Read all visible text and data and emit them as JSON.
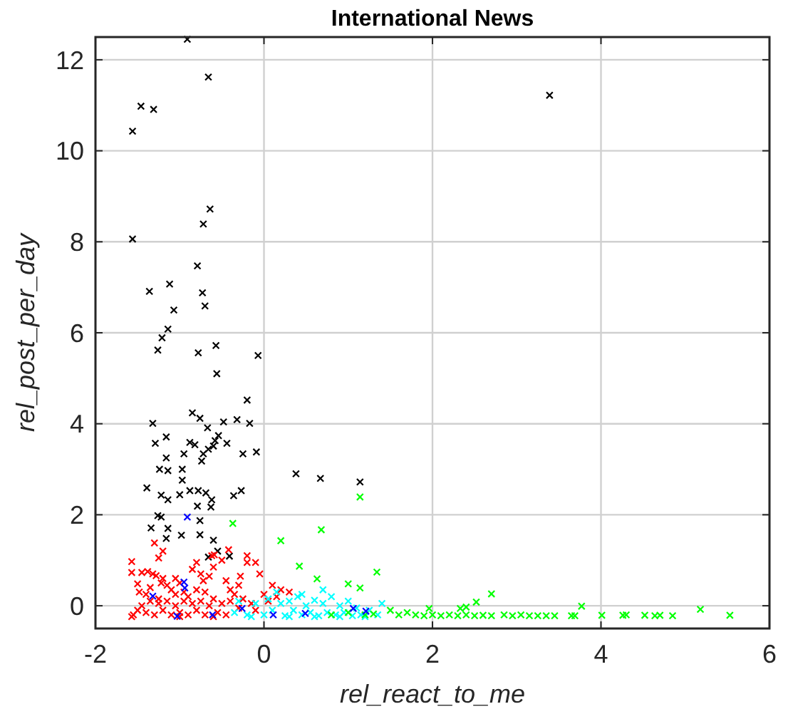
{
  "chart_data": {
    "type": "scatter",
    "title": "International News",
    "xlabel": "rel_react_to_me",
    "ylabel": "rel_post_per_day",
    "xlim": [
      -2,
      6
    ],
    "ylim": [
      -0.5,
      12.5
    ],
    "xticks": [
      -2,
      0,
      2,
      4,
      6
    ],
    "yticks": [
      0,
      2,
      4,
      6,
      8,
      10,
      12
    ],
    "grid": true,
    "marker": "cross",
    "series": [
      {
        "color": "#000000",
        "x": [
          -0.91,
          -0.66,
          -1.46,
          -1.31,
          -1.56,
          3.39,
          -0.64,
          -0.72,
          -1.56,
          -0.79,
          -1.12,
          -1.36,
          -0.73,
          -0.7,
          -1.07,
          -1.14,
          -1.21,
          -1.26,
          -0.78,
          -0.57,
          -0.07,
          -0.56,
          -0.2,
          -0.85,
          -0.76,
          -0.32,
          -1.32,
          -0.48,
          -0.17,
          -0.67,
          -1.16,
          -0.54,
          -0.58,
          -1.29,
          -0.44,
          -0.88,
          -0.82,
          -0.6,
          -0.66,
          -0.72,
          -0.95,
          -0.25,
          -0.09,
          -1.16,
          -0.74,
          -1.24,
          -1.14,
          -0.97,
          -0.97,
          -1.39,
          -0.88,
          -0.78,
          -0.69,
          -0.27,
          -1.22,
          -1,
          -0.36,
          -1.14,
          -0.62,
          -0.79,
          -0.63,
          0.38,
          0.67,
          1.14,
          -1.26,
          -1.22,
          -0.76,
          -1.34,
          -1.14,
          -1.16,
          -0.98,
          -0.76,
          -0.6,
          -0.55,
          -0.66,
          -0.41
        ],
        "values": [
          12.45,
          11.62,
          10.98,
          10.91,
          10.43,
          11.22,
          8.72,
          8.39,
          8.06,
          7.47,
          7.07,
          6.91,
          6.88,
          6.59,
          6.5,
          6.08,
          5.89,
          5.62,
          5.56,
          5.72,
          5.5,
          5.1,
          4.52,
          4.24,
          4.12,
          4.09,
          4.01,
          4.04,
          4.01,
          3.91,
          3.71,
          3.74,
          3.63,
          3.57,
          3.57,
          3.59,
          3.54,
          3.51,
          3.44,
          3.34,
          3.34,
          3.34,
          3.38,
          3.25,
          3.18,
          3,
          2.97,
          3,
          2.76,
          2.59,
          2.53,
          2.53,
          2.48,
          2.53,
          2.43,
          2.44,
          2.42,
          2.33,
          2.33,
          2.19,
          2.17,
          2.9,
          2.8,
          2.72,
          1.98,
          1.95,
          1.87,
          1.71,
          1.7,
          1.48,
          1.55,
          1.56,
          1.44,
          1.2,
          1.07,
          1.09
        ]
      },
      {
        "color": "#ff0000",
        "x": [
          -1.57,
          -1.57,
          -1.45,
          -1.38,
          -1.32,
          -1.28,
          -1.3,
          -1.25,
          -1.2,
          -1.22,
          -1.5,
          -1.48,
          -1.4,
          -1.35,
          -1.2,
          -1.15,
          -1.1,
          -1.05,
          -1,
          -0.95,
          -0.9,
          -0.8,
          -0.7,
          -0.75,
          -0.8,
          -0.72,
          -0.65,
          -0.6,
          -0.59,
          -0.5,
          -0.45,
          -0.4,
          -0.35,
          -0.3,
          -0.28,
          -0.2,
          -0.1,
          -0.05,
          0,
          0.1,
          0.2,
          0.3,
          -0.2,
          -0.42,
          -0.62,
          -0.85,
          -1.05,
          -1.25,
          -1.55,
          -1.5,
          -1.45,
          -1.4,
          -1.35,
          -1.3,
          -1.25,
          -1.2,
          -1.15,
          -1.1,
          -1.05,
          -1,
          -0.95,
          -0.9,
          -0.85,
          -0.8,
          -0.75,
          -0.7,
          -0.65,
          -0.6,
          -0.55,
          -0.5,
          -0.45,
          -0.4,
          -0.3,
          -0.25,
          -0.15,
          -0.1,
          0.05,
          0.15,
          -1.57,
          -1,
          -0.6
        ],
        "values": [
          0.97,
          0.73,
          0.73,
          0.75,
          0.7,
          0.66,
          1.38,
          1.05,
          1.2,
          0.5,
          0.48,
          0.3,
          0.25,
          0.4,
          0.6,
          0.45,
          0.35,
          0.25,
          0.5,
          0.3,
          0.2,
          0.35,
          0.3,
          0.7,
          0.95,
          0.55,
          0.65,
          0.85,
          1.12,
          1,
          0.55,
          0.35,
          0.25,
          0.45,
          0.65,
          0.95,
          0.95,
          0.7,
          0.25,
          0.45,
          0.35,
          0.3,
          1.1,
          1.23,
          1.1,
          0.8,
          0.6,
          0.15,
          -0.2,
          -0.1,
          0,
          -0.15,
          0.1,
          -0.2,
          0.05,
          -0.1,
          0.1,
          -0.2,
          0,
          -0.15,
          0.1,
          -0.2,
          0.05,
          -0.1,
          0.1,
          -0.2,
          0,
          0.15,
          -0.15,
          0.05,
          -0.2,
          0.1,
          -0.05,
          0.15,
          0.05,
          -0.1,
          0.1,
          0.2,
          -0.24,
          -0.24,
          -0.24
        ]
      },
      {
        "color": "#00ffff",
        "x": [
          -0.35,
          -0.3,
          -0.2,
          -0.1,
          0,
          0.05,
          0.1,
          0.2,
          0.25,
          0.3,
          0.35,
          0.4,
          0.45,
          0.5,
          0.55,
          0.6,
          0.65,
          0.7,
          0.75,
          0.8,
          0.85,
          0.9,
          0.95,
          1,
          1.05,
          1.1,
          1.15,
          1.25,
          1.35,
          1.4,
          0.15,
          0.45,
          0.7,
          -0.15,
          0.3,
          0.6,
          0.9,
          1.2
        ],
        "values": [
          -0.15,
          0.1,
          -0.2,
          0.05,
          -0.2,
          0.15,
          -0.1,
          0.05,
          -0.22,
          0.1,
          -0.1,
          0.2,
          -0.2,
          0,
          -0.15,
          0.12,
          -0.22,
          0.05,
          -0.15,
          0.2,
          -0.2,
          0,
          -0.15,
          0.1,
          -0.22,
          -0.05,
          -0.2,
          -0.1,
          -0.2,
          0.05,
          0.3,
          0.25,
          0.35,
          -0.24,
          -0.24,
          -0.24,
          -0.24,
          -0.24
        ]
      },
      {
        "color": "#00ff00",
        "x": [
          1.14,
          -0.37,
          0.68,
          0.2,
          0.42,
          1.34,
          0.63,
          1,
          1.14,
          2.7,
          2.52,
          3.77,
          5.18,
          0.8,
          1,
          1.2,
          1.3,
          1.5,
          1.6,
          1.7,
          1.8,
          1.9,
          2,
          2.1,
          2.2,
          2.3,
          2.4,
          2.5,
          2.6,
          2.7,
          2.85,
          2.95,
          3.05,
          3.15,
          3.25,
          3.35,
          3.45,
          3.65,
          3.69,
          4.01,
          4.26,
          4.3,
          4.52,
          4.64,
          4.7,
          4.85,
          5.53,
          1.96,
          2.33,
          2.4
        ],
        "values": [
          2.39,
          1.81,
          1.67,
          1.43,
          0.87,
          0.74,
          0.59,
          0.48,
          0.39,
          0.26,
          0.08,
          -0.01,
          -0.08,
          -0.2,
          -0.15,
          -0.2,
          -0.18,
          -0.1,
          -0.2,
          -0.15,
          -0.2,
          -0.22,
          -0.2,
          -0.22,
          -0.2,
          -0.22,
          -0.2,
          -0.22,
          -0.21,
          -0.22,
          -0.2,
          -0.22,
          -0.2,
          -0.22,
          -0.22,
          -0.22,
          -0.22,
          -0.22,
          -0.22,
          -0.21,
          -0.21,
          -0.2,
          -0.21,
          -0.22,
          -0.21,
          -0.22,
          -0.21,
          -0.06,
          -0.06,
          -0.03
        ]
      },
      {
        "color": "#0000ff",
        "x": [
          -0.91,
          -0.95,
          -0.94,
          -1.32,
          -0.26,
          1.06,
          1.21,
          0.49,
          -1.03,
          -0.61,
          0.11
        ],
        "values": [
          1.95,
          0.52,
          0.39,
          0.21,
          -0.06,
          -0.06,
          -0.12,
          -0.17,
          -0.23,
          -0.2,
          -0.2
        ]
      }
    ]
  }
}
